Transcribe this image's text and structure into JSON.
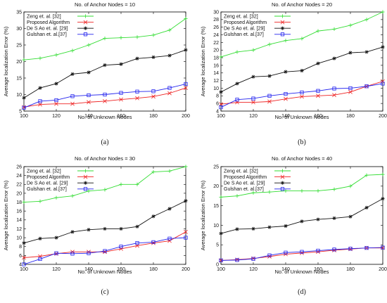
{
  "figure": {
    "shared": {
      "xlabel": "No. of Unknown Nodes",
      "ylabel": "Average localization Error (%)",
      "legend_placement": "top-left",
      "series_style": [
        {
          "color": "#33dd33",
          "marker": "plus"
        },
        {
          "color": "#ee2222",
          "marker": "x"
        },
        {
          "color": "#111111",
          "marker": "star"
        },
        {
          "color": "#2222ee",
          "marker": "square"
        }
      ]
    }
  },
  "chart_data": [
    {
      "type": "line",
      "title": "No. of Anchor Nodes = 10",
      "caption": "(a)",
      "xlabel": "No. of Unknown Nodes",
      "ylabel": "Average localization Error (%)",
      "xlim": [
        100,
        200
      ],
      "ylim": [
        5,
        35
      ],
      "xticks": [
        100,
        120,
        140,
        160,
        180,
        200
      ],
      "yticks": [
        5,
        10,
        15,
        20,
        25,
        30,
        35
      ],
      "grid": false,
      "legend": "top-left",
      "x": [
        100,
        110,
        120,
        130,
        140,
        150,
        160,
        170,
        180,
        190,
        200
      ],
      "series": [
        {
          "name": "Zeng et. al. [32]",
          "values": [
            20.5,
            21.0,
            22.0,
            23.3,
            25.0,
            27.0,
            27.2,
            27.4,
            28.0,
            29.5,
            33.0
          ]
        },
        {
          "name": "Proposed Algorithm",
          "values": [
            6.2,
            7.0,
            7.2,
            7.2,
            7.7,
            8.0,
            8.5,
            8.9,
            9.4,
            10.4,
            12.0
          ]
        },
        {
          "name": "De S Ao et. al. [29]",
          "values": [
            9.0,
            12.0,
            13.3,
            16.2,
            16.7,
            18.9,
            19.2,
            20.9,
            21.3,
            21.8,
            23.5
          ]
        },
        {
          "name": "Gulshan et. al.[37]",
          "values": [
            6.0,
            8.0,
            8.3,
            9.5,
            9.8,
            10.0,
            10.5,
            10.9,
            11.0,
            12.0,
            13.2
          ]
        }
      ]
    },
    {
      "type": "line",
      "title": "No. of Anchor Nodes = 20",
      "caption": "(b)",
      "xlabel": "No. of Unknown Nodes",
      "ylabel": "Average localization Error (%)",
      "xlim": [
        100,
        200
      ],
      "ylim": [
        4,
        30
      ],
      "xticks": [
        100,
        120,
        140,
        160,
        180,
        200
      ],
      "yticks": [
        4,
        6,
        8,
        10,
        12,
        14,
        16,
        18,
        20,
        22,
        24,
        26,
        28,
        30
      ],
      "grid": false,
      "legend": "top-left",
      "x": [
        100,
        110,
        120,
        130,
        140,
        150,
        160,
        170,
        180,
        190,
        200
      ],
      "series": [
        {
          "name": "Zeng et. al. [32]",
          "values": [
            18.2,
            19.5,
            20.0,
            21.5,
            22.5,
            23.0,
            25.0,
            25.5,
            26.5,
            28.0,
            30.0
          ]
        },
        {
          "name": "Proposed Algorithm",
          "values": [
            5.8,
            6.3,
            6.3,
            6.5,
            7.2,
            7.8,
            8.0,
            8.2,
            9.0,
            10.5,
            11.8
          ]
        },
        {
          "name": "De S Ao et. al. [29]",
          "values": [
            9.0,
            11.2,
            13.0,
            13.2,
            14.3,
            14.6,
            16.5,
            17.8,
            19.3,
            19.5,
            20.8
          ]
        },
        {
          "name": "Gulshan et. al.[37]",
          "values": [
            5.0,
            7.0,
            7.3,
            8.0,
            8.5,
            8.9,
            9.3,
            9.9,
            10.0,
            10.5,
            11.2
          ]
        }
      ]
    },
    {
      "type": "line",
      "title": "No. of Anchor Nodes = 30",
      "caption": "(c)",
      "xlabel": "No. of Unknown Nodes",
      "ylabel": "Average localization Error (%)",
      "xlim": [
        100,
        200
      ],
      "ylim": [
        4,
        26
      ],
      "xticks": [
        100,
        120,
        140,
        160,
        180,
        200
      ],
      "yticks": [
        4,
        6,
        8,
        10,
        12,
        14,
        16,
        18,
        20,
        22,
        24,
        26
      ],
      "grid": false,
      "legend": "top-left",
      "x": [
        100,
        110,
        120,
        130,
        140,
        150,
        160,
        170,
        180,
        190,
        200
      ],
      "series": [
        {
          "name": "Zeng et. al. [32]",
          "values": [
            18.0,
            18.2,
            19.0,
            19.4,
            20.5,
            20.8,
            22.0,
            22.0,
            24.8,
            25.0,
            26.0
          ]
        },
        {
          "name": "Proposed Algorithm",
          "values": [
            5.5,
            5.8,
            6.4,
            6.8,
            6.8,
            6.8,
            7.5,
            8.2,
            8.8,
            9.3,
            11.3
          ]
        },
        {
          "name": "De S Ao et. al. [29]",
          "values": [
            8.8,
            9.8,
            10.0,
            11.3,
            11.8,
            12.0,
            12.0,
            12.5,
            14.8,
            16.5,
            18.3
          ]
        },
        {
          "name": "Gulshan et. al.[37]",
          "values": [
            4.0,
            5.2,
            6.5,
            6.4,
            6.5,
            7.0,
            8.0,
            8.8,
            9.0,
            9.8,
            10.0
          ]
        }
      ]
    },
    {
      "type": "line",
      "title": "No. of Anchor Nodes = 40",
      "caption": "(d)",
      "xlabel": "No. of Unknown Nodes",
      "ylabel": "Average localization Error (%)",
      "xlim": [
        100,
        200
      ],
      "ylim": [
        0,
        25
      ],
      "xticks": [
        100,
        120,
        140,
        160,
        180,
        200
      ],
      "yticks": [
        0,
        5,
        10,
        15,
        20,
        25
      ],
      "grid": false,
      "legend": "top-left",
      "x": [
        100,
        110,
        120,
        130,
        140,
        150,
        160,
        170,
        180,
        190,
        200
      ],
      "series": [
        {
          "name": "Zeng et. al. [32]",
          "values": [
            17.2,
            17.5,
            18.3,
            18.5,
            18.8,
            18.8,
            18.8,
            19.2,
            20.0,
            22.8,
            23.0
          ]
        },
        {
          "name": "Proposed Algorithm",
          "values": [
            1.0,
            1.2,
            1.5,
            2.0,
            2.6,
            2.9,
            3.2,
            3.6,
            3.9,
            4.2,
            4.2
          ]
        },
        {
          "name": "De S Ao et. al. [29]",
          "values": [
            7.9,
            9.0,
            9.1,
            9.5,
            9.8,
            11.0,
            11.5,
            11.8,
            12.2,
            14.5,
            16.8
          ]
        },
        {
          "name": "Gulshan et. al.[37]",
          "values": [
            1.0,
            1.1,
            1.4,
            2.3,
            3.0,
            3.2,
            3.5,
            3.8,
            4.0,
            4.2,
            4.3
          ]
        }
      ]
    }
  ]
}
